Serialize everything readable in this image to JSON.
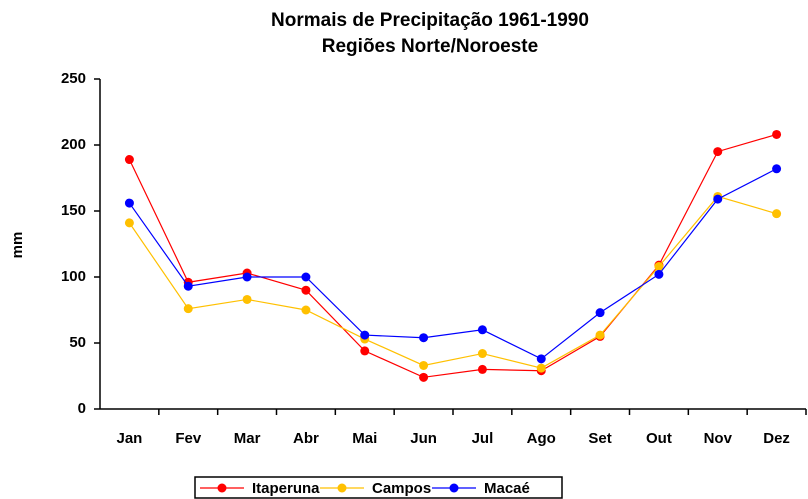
{
  "chart_data": {
    "type": "line",
    "title": "Normais de Precipitação 1961-1990",
    "subtitle": "Regiões Norte/Noroeste",
    "y_label": "mm",
    "categories": [
      "Jan",
      "Fev",
      "Mar",
      "Abr",
      "Mai",
      "Jun",
      "Jul",
      "Ago",
      "Set",
      "Out",
      "Nov",
      "Dez"
    ],
    "series": [
      {
        "name": "Itaperuna",
        "color": "#ff0000",
        "values": [
          189,
          96,
          103,
          90,
          44,
          24,
          30,
          29,
          55,
          109,
          195,
          208
        ]
      },
      {
        "name": "Campos",
        "color": "#ffc000",
        "values": [
          141,
          76,
          83,
          75,
          53,
          33,
          42,
          31,
          56,
          108,
          161,
          148
        ]
      },
      {
        "name": "Macaé",
        "color": "#0000ff",
        "values": [
          156,
          93,
          100,
          100,
          56,
          54,
          60,
          38,
          73,
          102,
          159,
          182
        ]
      }
    ],
    "ylim": [
      0,
      250
    ],
    "yticks": [
      0,
      50,
      100,
      150,
      200,
      250
    ],
    "grid": false,
    "legend": "bottom"
  }
}
